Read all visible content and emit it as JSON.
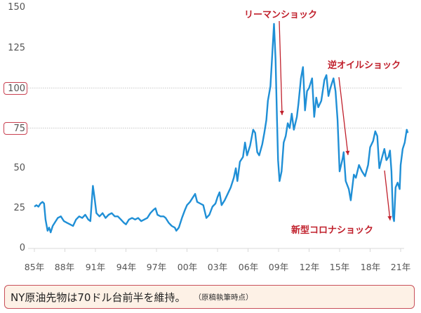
{
  "chart_data": {
    "type": "line",
    "title": "",
    "xlabel": "",
    "ylabel": "",
    "ylim": [
      0,
      150
    ],
    "yticks": [
      0,
      25,
      50,
      75,
      100,
      125,
      150
    ],
    "highlighted_yticks": [
      75,
      100
    ],
    "gridlines": [
      75,
      100
    ],
    "x_tick_labels": [
      "85年",
      "88年",
      "91年",
      "94年",
      "97年",
      "00年",
      "03年",
      "06年",
      "09年",
      "12年",
      "15年",
      "18年",
      "21年"
    ],
    "x_tick_years": [
      1985,
      1988,
      1991,
      1994,
      1997,
      2000,
      2003,
      2006,
      2009,
      2012,
      2015,
      2018,
      2021
    ],
    "series": [
      {
        "name": "NY原油先物",
        "color": "#1f8fd6",
        "points": [
          [
            1985.0,
            26
          ],
          [
            1985.2,
            27
          ],
          [
            1985.4,
            26
          ],
          [
            1985.6,
            28
          ],
          [
            1985.8,
            29
          ],
          [
            1985.95,
            28
          ],
          [
            1986.1,
            18
          ],
          [
            1986.3,
            11
          ],
          [
            1986.45,
            13
          ],
          [
            1986.6,
            10
          ],
          [
            1986.8,
            14
          ],
          [
            1987.0,
            16
          ],
          [
            1987.3,
            19
          ],
          [
            1987.6,
            20
          ],
          [
            1987.9,
            17
          ],
          [
            1988.2,
            16
          ],
          [
            1988.5,
            15
          ],
          [
            1988.8,
            14
          ],
          [
            1989.1,
            18
          ],
          [
            1989.4,
            20
          ],
          [
            1989.7,
            19
          ],
          [
            1990.0,
            21
          ],
          [
            1990.3,
            18
          ],
          [
            1990.5,
            17
          ],
          [
            1990.75,
            39
          ],
          [
            1990.9,
            32
          ],
          [
            1991.1,
            22
          ],
          [
            1991.4,
            20
          ],
          [
            1991.7,
            22
          ],
          [
            1992.0,
            19
          ],
          [
            1992.3,
            21
          ],
          [
            1992.6,
            22
          ],
          [
            1992.9,
            20
          ],
          [
            1993.2,
            20
          ],
          [
            1993.5,
            18
          ],
          [
            1993.8,
            16
          ],
          [
            1994.0,
            15
          ],
          [
            1994.3,
            18
          ],
          [
            1994.6,
            19
          ],
          [
            1994.9,
            18
          ],
          [
            1995.2,
            19
          ],
          [
            1995.5,
            17
          ],
          [
            1995.8,
            18
          ],
          [
            1996.1,
            19
          ],
          [
            1996.4,
            22
          ],
          [
            1996.7,
            24
          ],
          [
            1996.9,
            25
          ],
          [
            1997.1,
            21
          ],
          [
            1997.4,
            20
          ],
          [
            1997.7,
            20
          ],
          [
            1997.9,
            19
          ],
          [
            1998.2,
            16
          ],
          [
            1998.5,
            14
          ],
          [
            1998.8,
            13
          ],
          [
            1998.95,
            11
          ],
          [
            1999.2,
            13
          ],
          [
            1999.5,
            19
          ],
          [
            1999.8,
            24
          ],
          [
            2000.0,
            27
          ],
          [
            2000.3,
            29
          ],
          [
            2000.6,
            32
          ],
          [
            2000.8,
            34
          ],
          [
            2001.0,
            29
          ],
          [
            2001.3,
            28
          ],
          [
            2001.6,
            27
          ],
          [
            2001.9,
            19
          ],
          [
            2002.2,
            21
          ],
          [
            2002.5,
            26
          ],
          [
            2002.8,
            28
          ],
          [
            2003.0,
            32
          ],
          [
            2003.2,
            35
          ],
          [
            2003.4,
            27
          ],
          [
            2003.7,
            30
          ],
          [
            2004.0,
            34
          ],
          [
            2004.3,
            38
          ],
          [
            2004.6,
            44
          ],
          [
            2004.8,
            50
          ],
          [
            2004.95,
            42
          ],
          [
            2005.2,
            54
          ],
          [
            2005.5,
            57
          ],
          [
            2005.7,
            66
          ],
          [
            2005.9,
            58
          ],
          [
            2006.2,
            64
          ],
          [
            2006.5,
            74
          ],
          [
            2006.7,
            72
          ],
          [
            2006.9,
            60
          ],
          [
            2007.1,
            58
          ],
          [
            2007.4,
            65
          ],
          [
            2007.6,
            72
          ],
          [
            2007.8,
            80
          ],
          [
            2007.95,
            92
          ],
          [
            2008.2,
            101
          ],
          [
            2008.4,
            123
          ],
          [
            2008.55,
            140
          ],
          [
            2008.7,
            118
          ],
          [
            2008.85,
            80
          ],
          [
            2008.95,
            55
          ],
          [
            2009.1,
            42
          ],
          [
            2009.3,
            48
          ],
          [
            2009.5,
            66
          ],
          [
            2009.7,
            70
          ],
          [
            2009.9,
            78
          ],
          [
            2010.1,
            75
          ],
          [
            2010.3,
            84
          ],
          [
            2010.5,
            74
          ],
          [
            2010.8,
            82
          ],
          [
            2010.95,
            90
          ],
          [
            2011.2,
            106
          ],
          [
            2011.4,
            113
          ],
          [
            2011.6,
            86
          ],
          [
            2011.8,
            98
          ],
          [
            2012.0,
            100
          ],
          [
            2012.3,
            106
          ],
          [
            2012.5,
            82
          ],
          [
            2012.7,
            94
          ],
          [
            2012.9,
            88
          ],
          [
            2013.2,
            92
          ],
          [
            2013.5,
            105
          ],
          [
            2013.7,
            108
          ],
          [
            2013.9,
            95
          ],
          [
            2014.1,
            100
          ],
          [
            2014.4,
            106
          ],
          [
            2014.6,
            98
          ],
          [
            2014.8,
            80
          ],
          [
            2015.0,
            48
          ],
          [
            2015.3,
            56
          ],
          [
            2015.4,
            60
          ],
          [
            2015.6,
            42
          ],
          [
            2015.9,
            37
          ],
          [
            2016.1,
            30
          ],
          [
            2016.4,
            46
          ],
          [
            2016.6,
            44
          ],
          [
            2016.9,
            52
          ],
          [
            2017.2,
            48
          ],
          [
            2017.5,
            45
          ],
          [
            2017.8,
            52
          ],
          [
            2018.0,
            63
          ],
          [
            2018.3,
            67
          ],
          [
            2018.5,
            73
          ],
          [
            2018.7,
            70
          ],
          [
            2018.9,
            50
          ],
          [
            2019.1,
            55
          ],
          [
            2019.4,
            62
          ],
          [
            2019.6,
            55
          ],
          [
            2019.8,
            57
          ],
          [
            2019.95,
            61
          ],
          [
            2020.1,
            48
          ],
          [
            2020.25,
            20
          ],
          [
            2020.35,
            17
          ],
          [
            2020.5,
            38
          ],
          [
            2020.7,
            41
          ],
          [
            2020.9,
            37
          ],
          [
            2021.0,
            52
          ],
          [
            2021.2,
            62
          ],
          [
            2021.4,
            66
          ],
          [
            2021.6,
            74
          ],
          [
            2021.7,
            72
          ]
        ]
      }
    ],
    "annotations": [
      {
        "text": "リーマンショック",
        "arrow_from_year": 2008.7,
        "arrow_to_year": 2009.2,
        "arrow_to_value": 83
      },
      {
        "text": "逆オイルショック",
        "arrow_from_year": 2014.8,
        "arrow_to_year": 2015.6,
        "arrow_to_value": 57
      },
      {
        "text": "新型コロナショック",
        "arrow_from_year": 2020.0,
        "arrow_to_year": 2020.2,
        "arrow_to_value": 19
      }
    ]
  },
  "axis": {
    "y_labels": [
      "150",
      "125",
      "100",
      "75",
      "50",
      "25",
      "0"
    ],
    "x_labels": [
      "85年",
      "88年",
      "91年",
      "94年",
      "97年",
      "00年",
      "03年",
      "06年",
      "09年",
      "12年",
      "15年",
      "18年",
      "21年"
    ]
  },
  "annotations": {
    "lehman": "リーマンショック",
    "reverse_oil": "逆オイルショック",
    "covid": "新型コロナショック"
  },
  "caption": {
    "main": "NY原油先物は70ドル台前半を維持。",
    "note": "（原稿執筆時点）"
  },
  "colors": {
    "line": "#1f8fd6",
    "annotation": "#c0202c",
    "caption_bg": "#fdf1e6",
    "caption_border": "#c8505a",
    "highlight_box": "#c84050"
  }
}
